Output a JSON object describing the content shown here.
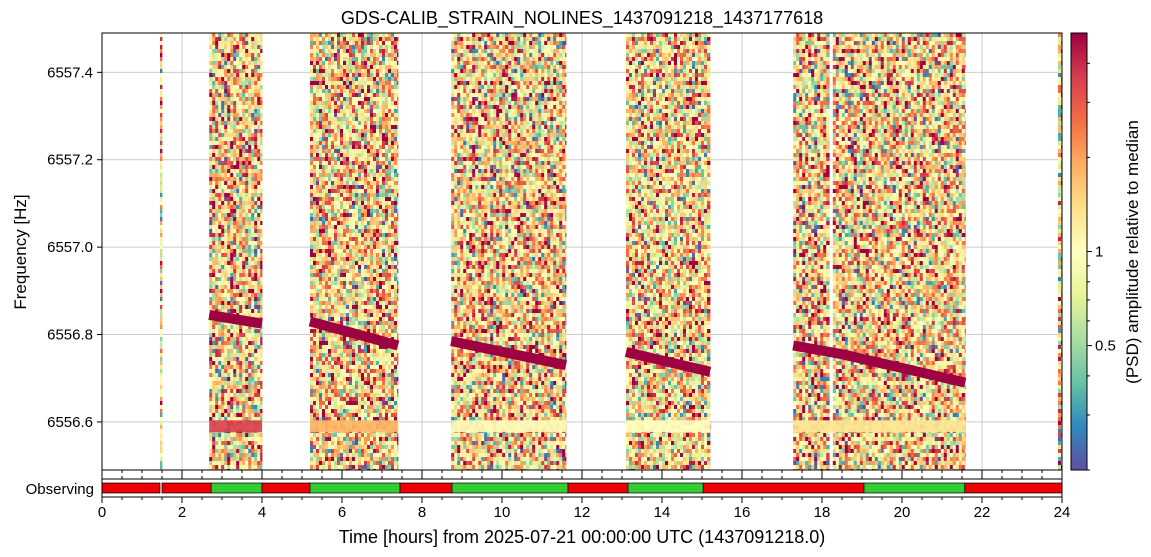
{
  "chart_data": {
    "type": "heatmap",
    "title": "GDS-CALIB_STRAIN_NOLINES_1437091218_1437177618",
    "xlabel": "Time [hours] from 2025-07-21 00:00:00 UTC (1437091218.0)",
    "ylabel": "Frequency [Hz]",
    "colorbar_label": "(PSD) amplitude relative to median",
    "colormap": "Spectral_r",
    "xlim": [
      0,
      24
    ],
    "ylim": [
      6556.49,
      6557.49
    ],
    "x_ticks": [
      "0",
      "2",
      "4",
      "6",
      "8",
      "10",
      "12",
      "14",
      "16",
      "18",
      "20",
      "22",
      "24"
    ],
    "y_ticks": [
      "6556.6",
      "6556.8",
      "6557.0",
      "6557.2",
      "6557.4"
    ],
    "colorbar_ticks": [
      "0.5",
      "1"
    ],
    "colorbar_range": [
      0.2,
      5
    ],
    "colorbar_scale": "log",
    "grid": true,
    "data_segments": [
      {
        "start": 1.45,
        "end": 1.5
      },
      {
        "start": 2.68,
        "end": 4.0
      },
      {
        "start": 5.2,
        "end": 7.4
      },
      {
        "start": 8.73,
        "end": 11.6
      },
      {
        "start": 13.1,
        "end": 15.2
      },
      {
        "start": 17.28,
        "end": 18.18
      },
      {
        "start": 18.27,
        "end": 21.58
      },
      {
        "start": 23.9,
        "end": 24.0
      }
    ],
    "lines": [
      {
        "points": [
          [
            2.68,
            6556.845
          ],
          [
            4.0,
            6556.825
          ]
        ]
      },
      {
        "points": [
          [
            5.2,
            6556.83
          ],
          [
            7.4,
            6556.775
          ]
        ]
      },
      {
        "points": [
          [
            8.73,
            6556.785
          ],
          [
            11.6,
            6556.73
          ]
        ]
      },
      {
        "points": [
          [
            13.1,
            6556.76
          ],
          [
            15.2,
            6556.715
          ]
        ]
      },
      {
        "points": [
          [
            17.28,
            6556.775
          ],
          [
            18.5,
            6556.755
          ],
          [
            21.58,
            6556.69
          ]
        ]
      }
    ],
    "low_band": {
      "frequency": 6556.59,
      "segments": [
        {
          "start": 2.68,
          "end": 4.0,
          "level": 3.5
        },
        {
          "start": 5.2,
          "end": 7.4,
          "level": 1.8
        },
        {
          "start": 8.73,
          "end": 11.6,
          "level": 1.05
        },
        {
          "start": 13.1,
          "end": 15.2,
          "level": 1.0
        },
        {
          "start": 17.28,
          "end": 21.58,
          "level": 1.3
        }
      ]
    },
    "state_panel": {
      "label": "Observing",
      "states": [
        {
          "start": 0.0,
          "end": 1.45,
          "observing": false
        },
        {
          "start": 1.5,
          "end": 2.73,
          "observing": false
        },
        {
          "start": 2.73,
          "end": 4.0,
          "observing": true
        },
        {
          "start": 4.0,
          "end": 5.2,
          "observing": false
        },
        {
          "start": 5.2,
          "end": 7.45,
          "observing": true
        },
        {
          "start": 7.45,
          "end": 8.75,
          "observing": false
        },
        {
          "start": 8.75,
          "end": 11.65,
          "observing": true
        },
        {
          "start": 11.65,
          "end": 13.15,
          "observing": false
        },
        {
          "start": 13.15,
          "end": 15.03,
          "observing": true
        },
        {
          "start": 15.03,
          "end": 19.05,
          "observing": false
        },
        {
          "start": 19.05,
          "end": 21.57,
          "observing": true
        },
        {
          "start": 21.57,
          "end": 24.0,
          "observing": false
        }
      ],
      "colors": {
        "observing": "#33cc33",
        "not_observing": "#ee0000"
      }
    }
  }
}
